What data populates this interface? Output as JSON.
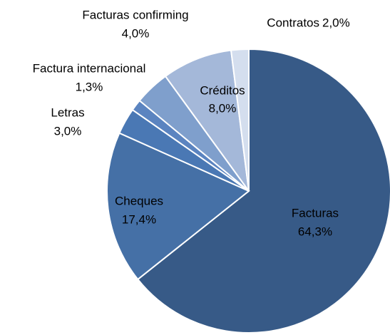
{
  "chart_data": {
    "type": "pie",
    "categories": [
      "Facturas",
      "Cheques",
      "Letras",
      "Factura internacional",
      "Facturas confirming",
      "Créditos",
      "Contratos"
    ],
    "values": [
      64.3,
      17.4,
      3.0,
      1.3,
      4.0,
      8.0,
      2.0
    ],
    "value_labels": [
      "64,3%",
      "17,4%",
      "3,0%",
      "1,3%",
      "4,0%",
      "8,0%",
      "2,0%"
    ],
    "colors": [
      "#375a87",
      "#4570a6",
      "#4a78b4",
      "#5b84c0",
      "#7f9fcc",
      "#a4b8d9",
      "#d4deee"
    ]
  }
}
